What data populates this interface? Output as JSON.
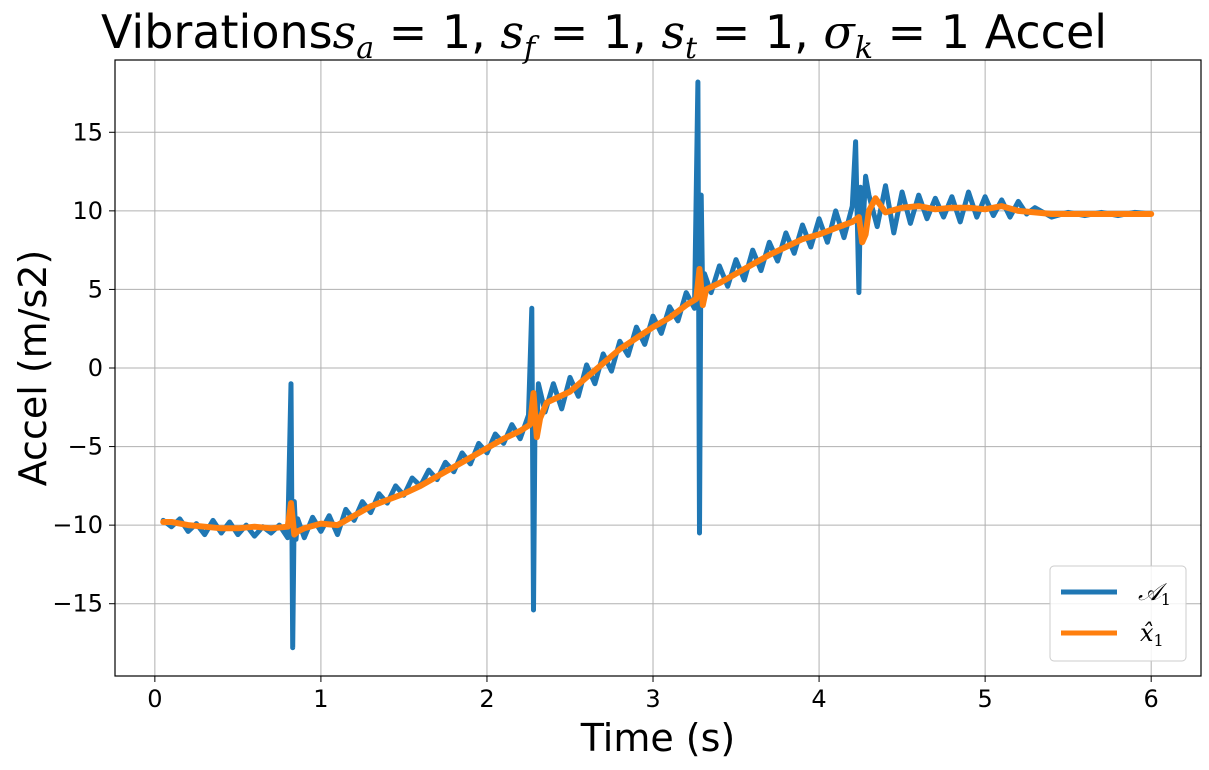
{
  "chart_data": {
    "type": "line",
    "title": "Vibrations",
    "title_math": {
      "sa_symbol": "s",
      "sa_sub": "a",
      "sa_val": " = 1, ",
      "sf_symbol": "s",
      "sf_sub": "f",
      "sf_val": " = 1, ",
      "st_symbol": "s",
      "st_sub": "t",
      "st_val": " = 1, ",
      "sigma_symbol": "σ",
      "sigma_sub": "k",
      "sigma_val": " = 1"
    },
    "title_suffix": " Accel",
    "xlabel": "Time (s)",
    "ylabel": "Accel (m/s2)",
    "xlim": [
      -0.24,
      6.3
    ],
    "ylim": [
      -19.6,
      19.6
    ],
    "x_ticks": [
      0,
      1,
      2,
      3,
      4,
      5,
      6
    ],
    "x_tick_labels": [
      "0",
      "1",
      "2",
      "3",
      "4",
      "5",
      "6"
    ],
    "y_ticks": [
      -15,
      -10,
      -5,
      0,
      5,
      10,
      15
    ],
    "y_tick_labels": [
      "−15",
      "−10",
      "−5",
      "0",
      "5",
      "10",
      "15"
    ],
    "grid": true,
    "legend_position": "lower-right",
    "series": [
      {
        "name": "𝒜₁",
        "legend_symbol": "𝒜",
        "legend_sub": "1",
        "color": "#1f77b4",
        "x": [
          0.05,
          0.1,
          0.15,
          0.2,
          0.25,
          0.3,
          0.35,
          0.4,
          0.45,
          0.5,
          0.55,
          0.6,
          0.65,
          0.7,
          0.75,
          0.8,
          0.82,
          0.83,
          0.84,
          0.85,
          0.86,
          0.9,
          0.95,
          1.0,
          1.05,
          1.1,
          1.15,
          1.2,
          1.25,
          1.3,
          1.35,
          1.4,
          1.45,
          1.5,
          1.55,
          1.6,
          1.65,
          1.7,
          1.75,
          1.8,
          1.85,
          1.9,
          1.95,
          2.0,
          2.05,
          2.1,
          2.15,
          2.2,
          2.25,
          2.27,
          2.28,
          2.29,
          2.3,
          2.31,
          2.35,
          2.4,
          2.45,
          2.5,
          2.55,
          2.6,
          2.65,
          2.7,
          2.75,
          2.8,
          2.85,
          2.9,
          2.95,
          3.0,
          3.05,
          3.1,
          3.15,
          3.2,
          3.25,
          3.27,
          3.28,
          3.29,
          3.3,
          3.31,
          3.35,
          3.4,
          3.45,
          3.5,
          3.55,
          3.6,
          3.65,
          3.7,
          3.75,
          3.8,
          3.85,
          3.9,
          3.95,
          4.0,
          4.05,
          4.1,
          4.15,
          4.2,
          4.22,
          4.24,
          4.25,
          4.26,
          4.28,
          4.3,
          4.35,
          4.4,
          4.45,
          4.5,
          4.55,
          4.6,
          4.65,
          4.7,
          4.75,
          4.8,
          4.85,
          4.9,
          4.95,
          5.0,
          5.05,
          5.1,
          5.15,
          5.2,
          5.25,
          5.3,
          5.4,
          5.5,
          5.6,
          5.7,
          5.8,
          5.9,
          6.0
        ],
        "values": [
          -9.7,
          -10.1,
          -9.6,
          -10.4,
          -9.9,
          -10.6,
          -9.7,
          -10.5,
          -9.8,
          -10.6,
          -10.0,
          -10.7,
          -10.1,
          -10.5,
          -10.0,
          -10.8,
          -1.0,
          -17.8,
          -8.5,
          -10.9,
          -9.6,
          -10.8,
          -9.5,
          -10.4,
          -9.4,
          -10.6,
          -9.0,
          -9.7,
          -8.5,
          -9.2,
          -8.0,
          -8.6,
          -7.5,
          -8.1,
          -7.0,
          -7.5,
          -6.5,
          -7.1,
          -6.0,
          -6.6,
          -5.4,
          -6.1,
          -4.8,
          -5.4,
          -4.2,
          -4.8,
          -3.6,
          -4.5,
          -3.0,
          3.8,
          -15.4,
          -2.5,
          -4.0,
          -1.0,
          -2.8,
          -1.0,
          -2.6,
          -0.6,
          -1.8,
          0.2,
          -1.0,
          0.9,
          -0.2,
          1.7,
          0.8,
          2.6,
          1.5,
          3.3,
          2.2,
          3.9,
          3.0,
          4.8,
          3.8,
          18.2,
          -10.5,
          11.0,
          4.0,
          6.0,
          4.8,
          6.5,
          5.2,
          6.9,
          5.6,
          7.5,
          6.2,
          8.0,
          6.8,
          8.6,
          7.3,
          9.1,
          7.7,
          9.5,
          8.0,
          10.0,
          8.3,
          10.3,
          14.4,
          4.8,
          11.5,
          8.0,
          12.2,
          11.0,
          9.0,
          11.6,
          8.6,
          11.2,
          9.2,
          11.0,
          9.5,
          10.8,
          9.6,
          10.9,
          9.3,
          11.2,
          9.6,
          10.9,
          9.7,
          10.7,
          9.6,
          10.6,
          9.8,
          10.2,
          9.6,
          9.9,
          9.7,
          9.9,
          9.7,
          9.9,
          9.8
        ]
      },
      {
        "name": "x̂₁",
        "legend_symbol": "x̂",
        "legend_sub": "1",
        "color": "#ff7f0e",
        "x": [
          0.05,
          0.1,
          0.2,
          0.3,
          0.4,
          0.5,
          0.6,
          0.7,
          0.8,
          0.82,
          0.84,
          0.86,
          0.9,
          1.0,
          1.1,
          1.2,
          1.3,
          1.4,
          1.5,
          1.6,
          1.7,
          1.8,
          1.9,
          2.0,
          2.1,
          2.2,
          2.26,
          2.28,
          2.3,
          2.32,
          2.36,
          2.4,
          2.5,
          2.6,
          2.7,
          2.8,
          2.9,
          3.0,
          3.1,
          3.2,
          3.26,
          3.28,
          3.3,
          3.32,
          3.4,
          3.5,
          3.6,
          3.7,
          3.8,
          3.9,
          4.0,
          4.1,
          4.2,
          4.24,
          4.26,
          4.28,
          4.3,
          4.34,
          4.4,
          4.5,
          4.6,
          4.7,
          4.8,
          4.9,
          5.0,
          5.1,
          5.2,
          5.3,
          5.4,
          5.5,
          5.6,
          5.7,
          5.8,
          5.9,
          6.0
        ],
        "values": [
          -9.8,
          -9.8,
          -10.0,
          -10.1,
          -10.2,
          -10.2,
          -10.1,
          -10.2,
          -10.1,
          -8.6,
          -10.6,
          -10.4,
          -10.2,
          -9.9,
          -10.0,
          -9.4,
          -8.8,
          -8.4,
          -8.0,
          -7.5,
          -6.9,
          -6.3,
          -5.7,
          -5.1,
          -4.5,
          -4.0,
          -3.6,
          -1.6,
          -4.4,
          -3.2,
          -2.2,
          -2.0,
          -1.5,
          -0.6,
          0.3,
          1.2,
          1.9,
          2.6,
          3.2,
          4.0,
          4.4,
          6.3,
          4.0,
          5.0,
          5.4,
          6.0,
          6.6,
          7.2,
          7.7,
          8.2,
          8.5,
          8.9,
          9.3,
          9.6,
          8.0,
          8.5,
          10.0,
          10.8,
          9.9,
          10.2,
          10.3,
          10.1,
          10.2,
          10.2,
          10.1,
          10.3,
          10.0,
          9.9,
          9.8,
          9.8,
          9.8,
          9.8,
          9.8,
          9.8,
          9.8
        ]
      }
    ]
  }
}
